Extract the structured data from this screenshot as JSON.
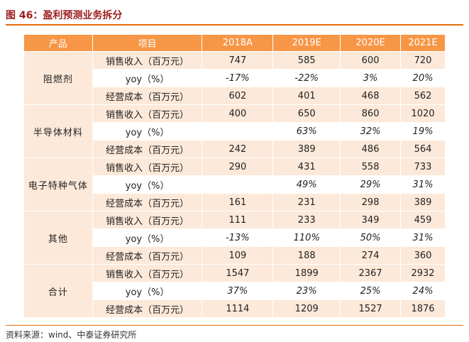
{
  "header": {
    "title": "图 46：盈利预测业务拆分"
  },
  "table": {
    "columns": [
      "产品",
      "项目",
      "2018A",
      "2019E",
      "2020E",
      "2021E"
    ],
    "groups": [
      {
        "product": "阻燃剂",
        "rows": [
          [
            "销售收入（百万元）",
            747,
            585,
            600,
            720
          ],
          [
            "yoy（%）",
            "-17%",
            "-22%",
            "3%",
            "20%"
          ],
          [
            "经营成本（百万元）",
            602,
            401,
            468,
            562
          ]
        ]
      },
      {
        "product": "半导体材料",
        "rows": [
          [
            "销售收入（百万元）",
            400,
            650,
            860,
            1020
          ],
          [
            "yoy（%）",
            null,
            "63%",
            "32%",
            "19%"
          ],
          [
            "经营成本（百万元）",
            242,
            389,
            486,
            564
          ]
        ]
      },
      {
        "product": "电子特种气体",
        "rows": [
          [
            "销售收入（百万元）",
            290,
            431,
            558,
            733
          ],
          [
            "yoy（%）",
            null,
            "49%",
            "29%",
            "31%"
          ],
          [
            "经营成本（百万元）",
            161,
            231,
            298,
            389
          ]
        ]
      },
      {
        "product": "其他",
        "rows": [
          [
            "销售收入（百万元）",
            111,
            233,
            349,
            459
          ],
          [
            "yoy（%）",
            "-13%",
            "110%",
            "50%",
            "31%"
          ],
          [
            "经营成本（百万元）",
            109,
            188,
            274,
            360
          ]
        ]
      },
      {
        "product": "合计",
        "rows": [
          [
            "销售收入（百万元）",
            1547,
            1899,
            2367,
            2932
          ],
          [
            "yoy（%）",
            "37%",
            "23%",
            "25%",
            "24%"
          ],
          [
            "经营成本（百万元）",
            1114,
            1209,
            1527,
            1876
          ]
        ]
      }
    ]
  },
  "footer": {
    "source": "资料来源：wind、中泰证券研究所"
  }
}
